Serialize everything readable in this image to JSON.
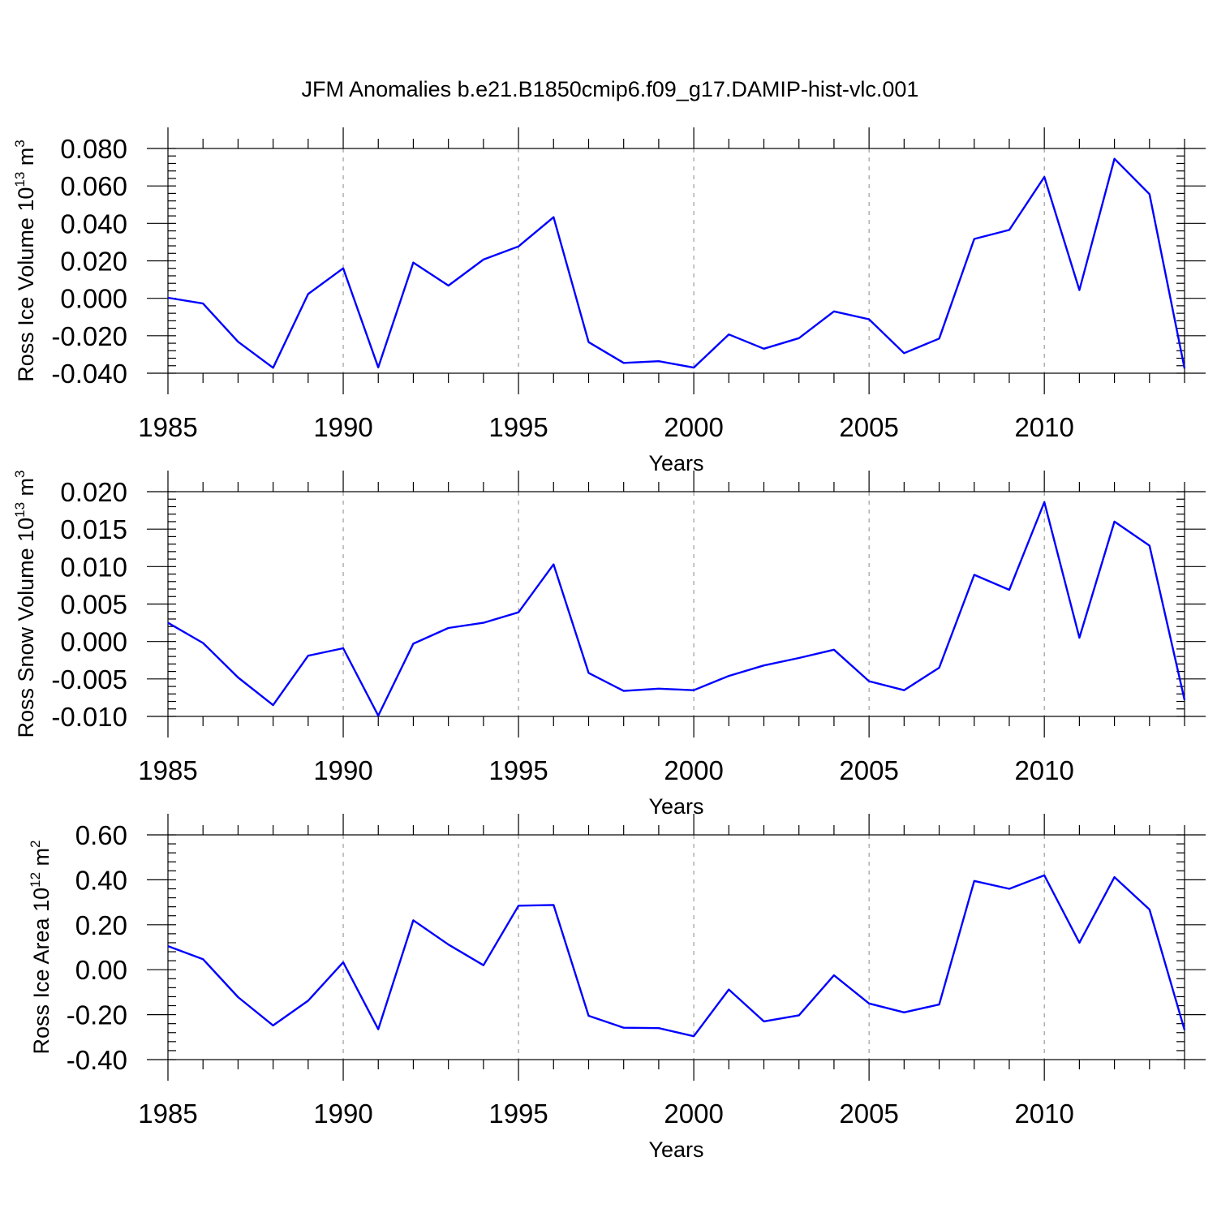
{
  "figure_title": "JFM Anomalies b.e21.B1850cmip6.f09_g17.DAMIP-hist-vlc.001",
  "line_color": "#0000ff",
  "chart_data": [
    {
      "type": "line",
      "ylabel": {
        "main": "Ross Ice Volume 10",
        "exp": "13",
        "unit": " m",
        "unit_exp": "3"
      },
      "xlabel": "Years",
      "xlim": [
        1985,
        2014
      ],
      "ylim": [
        -0.04,
        0.08
      ],
      "y_ticks": [
        -0.04,
        -0.02,
        0.0,
        0.02,
        0.04,
        0.06,
        0.08
      ],
      "y_tick_labels": [
        "-0.040",
        "-0.020",
        "0.000",
        "0.020",
        "0.040",
        "0.060",
        "0.080"
      ],
      "y_minor_step": 0.004,
      "x_ticks": [
        1985,
        1990,
        1995,
        2000,
        2005,
        2010
      ],
      "x_tick_labels": [
        "1985",
        "1990",
        "1995",
        "2000",
        "2005",
        "2010"
      ],
      "x_grid": [
        1990,
        1995,
        2000,
        2005,
        2010
      ],
      "series": [
        {
          "name": "Ross Ice Volume",
          "x": [
            1985,
            1986,
            1987,
            1988,
            1989,
            1990,
            1991,
            1992,
            1993,
            1994,
            1995,
            1996,
            1997,
            1998,
            1999,
            2000,
            2001,
            2002,
            2003,
            2004,
            2005,
            2006,
            2007,
            2008,
            2009,
            2010,
            2011,
            2012,
            2013,
            2014
          ],
          "values": [
            0.0003,
            -0.0028,
            -0.0232,
            -0.0371,
            0.0023,
            0.016,
            -0.0369,
            0.0191,
            0.0068,
            0.0207,
            0.0277,
            0.0433,
            -0.0234,
            -0.0345,
            -0.0336,
            -0.037,
            -0.0193,
            -0.0269,
            -0.0213,
            -0.007,
            -0.0112,
            -0.0293,
            -0.0215,
            0.0317,
            0.0365,
            0.0648,
            0.0044,
            0.0745,
            0.0556,
            -0.0375
          ]
        }
      ]
    },
    {
      "type": "line",
      "ylabel": {
        "main": "Ross Snow Volume 10",
        "exp": "13",
        "unit": " m",
        "unit_exp": "3"
      },
      "xlabel": "Years",
      "xlim": [
        1985,
        2014
      ],
      "ylim": [
        -0.01,
        0.02
      ],
      "y_ticks": [
        -0.01,
        -0.005,
        0.0,
        0.005,
        0.01,
        0.015,
        0.02
      ],
      "y_tick_labels": [
        "-0.010",
        "-0.005",
        "0.000",
        "0.005",
        "0.010",
        "0.015",
        "0.020"
      ],
      "y_minor_step": 0.001,
      "x_ticks": [
        1985,
        1990,
        1995,
        2000,
        2005,
        2010
      ],
      "x_tick_labels": [
        "1985",
        "1990",
        "1995",
        "2000",
        "2005",
        "2010"
      ],
      "x_grid": [
        1990,
        1995,
        2000,
        2005,
        2010
      ],
      "series": [
        {
          "name": "Ross Snow Volume",
          "x": [
            1985,
            1986,
            1987,
            1988,
            1989,
            1990,
            1991,
            1992,
            1993,
            1994,
            1995,
            1996,
            1997,
            1998,
            1999,
            2000,
            2001,
            2002,
            2003,
            2004,
            2005,
            2006,
            2007,
            2008,
            2009,
            2010,
            2011,
            2012,
            2013,
            2014
          ],
          "values": [
            0.0025,
            -0.0002,
            -0.0048,
            -0.0085,
            -0.0019,
            -0.0009,
            -0.0099,
            -0.0003,
            0.0018,
            0.0025,
            0.0039,
            0.0103,
            -0.0042,
            -0.0066,
            -0.0063,
            -0.0065,
            -0.0046,
            -0.0032,
            -0.0022,
            -0.0011,
            -0.0053,
            -0.0065,
            -0.0035,
            0.0089,
            0.0069,
            0.0186,
            0.0005,
            0.016,
            0.0128,
            -0.0078
          ]
        }
      ]
    },
    {
      "type": "line",
      "ylabel": {
        "main": "Ross Ice Area 10",
        "exp": "12",
        "unit": " m",
        "unit_exp": "2"
      },
      "xlabel": "Years",
      "xlim": [
        1985,
        2014
      ],
      "ylim": [
        -0.4,
        0.6
      ],
      "y_ticks": [
        -0.4,
        -0.2,
        0.0,
        0.2,
        0.4,
        0.6
      ],
      "y_tick_labels": [
        "-0.40",
        "-0.20",
        "0.00",
        "0.20",
        "0.40",
        "0.60"
      ],
      "y_minor_step": 0.04,
      "x_ticks": [
        1985,
        1990,
        1995,
        2000,
        2005,
        2010
      ],
      "x_tick_labels": [
        "1985",
        "1990",
        "1995",
        "2000",
        "2005",
        "2010"
      ],
      "x_grid": [
        1990,
        1995,
        2000,
        2005,
        2010
      ],
      "series": [
        {
          "name": "Ross Ice Area",
          "x": [
            1985,
            1986,
            1987,
            1988,
            1989,
            1990,
            1991,
            1992,
            1993,
            1994,
            1995,
            1996,
            1997,
            1998,
            1999,
            2000,
            2001,
            2002,
            2003,
            2004,
            2005,
            2006,
            2007,
            2008,
            2009,
            2010,
            2011,
            2012,
            2013,
            2014
          ],
          "values": [
            0.105,
            0.047,
            -0.122,
            -0.248,
            -0.138,
            0.033,
            -0.265,
            0.22,
            0.112,
            0.02,
            0.285,
            0.288,
            -0.205,
            -0.258,
            -0.26,
            -0.296,
            -0.088,
            -0.23,
            -0.203,
            -0.025,
            -0.15,
            -0.19,
            -0.155,
            0.395,
            0.36,
            0.42,
            0.12,
            0.412,
            0.268,
            -0.268
          ]
        }
      ]
    }
  ]
}
